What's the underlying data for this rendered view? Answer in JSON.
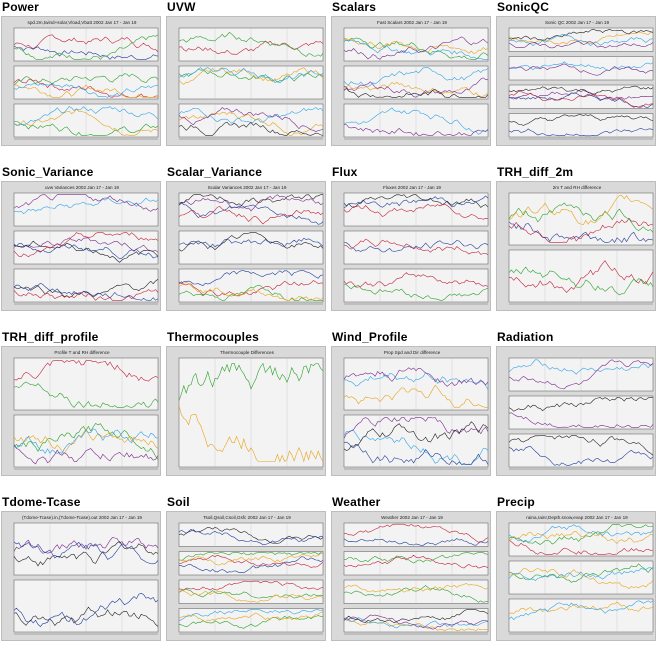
{
  "page": {
    "bg": "#ffffff",
    "thumb_bg": "#d9d9d9"
  },
  "series_colors": [
    "#1f3d99",
    "#c0233d",
    "#2aa02a",
    "#e8a317",
    "#2fa4e7",
    "#7a2a8c",
    "#222222"
  ],
  "panels": [
    {
      "title": "Power",
      "caption": "spd.2m,twind+solar,Vload,Vbatt 2002 Jan 17 - Jan 19",
      "subplots": 3
    },
    {
      "title": "UVW",
      "caption": "",
      "subplots": 3
    },
    {
      "title": "Scalars",
      "caption": "Fast Scalars 2002 Jan 17 - Jan 19",
      "subplots": 3
    },
    {
      "title": "SonicQC",
      "caption": "Sonic QC 2002 Jan 17 - Jan 19",
      "subplots": 4
    },
    {
      "title": "Sonic_Variance",
      "caption": "uvw Variances 2002 Jan 17 - Jan 19",
      "subplots": 3
    },
    {
      "title": "Scalar_Variance",
      "caption": "Scalar Variances 2002 Jan 17 - Jan 19",
      "subplots": 3
    },
    {
      "title": "Flux",
      "caption": "Fluxes 2002 Jan 17 - Jan 19",
      "subplots": 3
    },
    {
      "title": "TRH_diff_2m",
      "caption": "2m T and RH difference",
      "subplots": 2
    },
    {
      "title": "TRH_diff_profile",
      "caption": "Profile T and RH difference",
      "subplots": 2
    },
    {
      "title": "Thermocouples",
      "caption": "Thermocouple Differences",
      "subplots": 1
    },
    {
      "title": "Wind_Profile",
      "caption": "Prop Spd and Dir difference",
      "subplots": 2
    },
    {
      "title": "Radiation",
      "caption": "",
      "subplots": 3
    },
    {
      "title": "Tdome-Tcase",
      "caption": "(Tdome-Tcase).in,(Tdome-Tcase).out 2002 Jan 17 - Jan 19",
      "subplots": 2
    },
    {
      "title": "Soil",
      "caption": "Tsoil,Qsoil,Csoil,Gsfc 2002 Jan 17 - Jan 19",
      "subplots": 4
    },
    {
      "title": "Weather",
      "caption": "Weather 2002 Jan 17 - Jan 19",
      "subplots": 4
    },
    {
      "title": "Precip",
      "caption": "raina,rainr,Depth.snow,evap 2002 Jan 17 - Jan 19",
      "subplots": 3
    }
  ]
}
